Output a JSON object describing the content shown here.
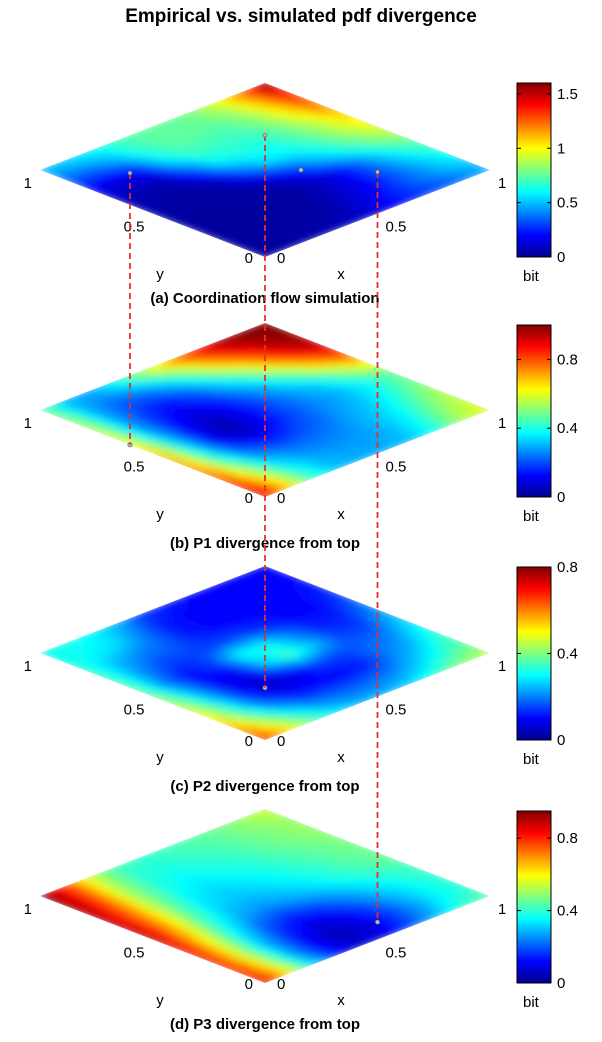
{
  "figure": {
    "title": "Empirical vs. simulated pdf divergence"
  },
  "colors": {
    "jet": [
      "#00008f",
      "#0000ff",
      "#0080ff",
      "#00ffff",
      "#80ff80",
      "#ffff00",
      "#ff8000",
      "#ff0000",
      "#800000"
    ],
    "connector": "#e8302a",
    "background": "#ffffff"
  },
  "chart_data": [
    {
      "type": "heatmap",
      "caption": "(a) Coordination flow simulation",
      "xlabel": "x",
      "ylabel": "y",
      "colorbar_label": "bit",
      "x_ticks": [
        "0",
        "0.5",
        "1"
      ],
      "y_ticks": [
        "0",
        "0.5",
        "1"
      ],
      "colorbar": {
        "min": 0,
        "max": 1.6,
        "ticks": [
          0,
          0.5,
          1,
          1.5
        ],
        "tick_labels": [
          "0",
          "0.5",
          "1",
          "1.5"
        ]
      },
      "marker": {
        "x": 0.58,
        "y": 0.42,
        "value": 0.0
      },
      "field": [
        [
          0.05,
          0.05,
          0.06,
          0.08,
          0.12,
          0.18,
          0.25,
          0.3,
          0.35,
          0.45
        ],
        [
          0.05,
          0.05,
          0.06,
          0.06,
          0.08,
          0.15,
          0.25,
          0.35,
          0.45,
          0.55
        ],
        [
          0.05,
          0.05,
          0.05,
          0.05,
          0.06,
          0.12,
          0.2,
          0.35,
          0.5,
          0.65
        ],
        [
          0.05,
          0.05,
          0.05,
          0.05,
          0.05,
          0.1,
          0.2,
          0.4,
          0.6,
          0.75
        ],
        [
          0.06,
          0.05,
          0.05,
          0.05,
          0.1,
          0.25,
          0.45,
          0.6,
          0.75,
          0.9
        ],
        [
          0.08,
          0.06,
          0.05,
          0.1,
          0.35,
          0.55,
          0.6,
          0.7,
          0.85,
          1.0
        ],
        [
          0.1,
          0.08,
          0.08,
          0.3,
          0.6,
          0.65,
          0.65,
          0.75,
          0.9,
          1.1
        ],
        [
          0.2,
          0.15,
          0.2,
          0.55,
          0.7,
          0.7,
          0.7,
          0.8,
          1.0,
          1.25
        ],
        [
          0.35,
          0.35,
          0.45,
          0.65,
          0.75,
          0.75,
          0.75,
          0.85,
          1.1,
          1.4
        ],
        [
          0.5,
          0.55,
          0.6,
          0.7,
          0.75,
          0.75,
          0.8,
          0.95,
          1.2,
          1.6
        ]
      ]
    },
    {
      "type": "heatmap",
      "caption": "(b) P1 divergence from top",
      "xlabel": "x",
      "ylabel": "y",
      "colorbar_label": "bit",
      "x_ticks": [
        "0",
        "0.5",
        "1"
      ],
      "y_ticks": [
        "0",
        "0.5",
        "1"
      ],
      "colorbar": {
        "min": 0,
        "max": 1.0,
        "ticks": [
          0,
          0.4,
          0.8
        ],
        "tick_labels": [
          "0",
          "0.4",
          "0.8"
        ]
      },
      "marker": {
        "x": 0.0,
        "y": 0.6,
        "value": 0.05
      },
      "field": [
        [
          0.95,
          0.7,
          0.45,
          0.32,
          0.3,
          0.3,
          0.32,
          0.4,
          0.55,
          0.6
        ],
        [
          0.9,
          0.65,
          0.4,
          0.3,
          0.28,
          0.28,
          0.3,
          0.38,
          0.5,
          0.58
        ],
        [
          0.85,
          0.55,
          0.32,
          0.25,
          0.24,
          0.26,
          0.3,
          0.35,
          0.45,
          0.55
        ],
        [
          0.8,
          0.45,
          0.22,
          0.14,
          0.18,
          0.22,
          0.28,
          0.32,
          0.4,
          0.5
        ],
        [
          0.75,
          0.4,
          0.12,
          0.05,
          0.12,
          0.2,
          0.26,
          0.3,
          0.38,
          0.48
        ],
        [
          0.7,
          0.35,
          0.12,
          0.05,
          0.12,
          0.2,
          0.28,
          0.35,
          0.5,
          0.65
        ],
        [
          0.65,
          0.3,
          0.15,
          0.1,
          0.15,
          0.25,
          0.35,
          0.5,
          0.7,
          0.85
        ],
        [
          0.6,
          0.3,
          0.18,
          0.15,
          0.22,
          0.35,
          0.5,
          0.7,
          0.88,
          0.95
        ],
        [
          0.55,
          0.3,
          0.22,
          0.25,
          0.35,
          0.5,
          0.7,
          0.85,
          0.95,
          1.0
        ],
        [
          0.5,
          0.3,
          0.3,
          0.4,
          0.55,
          0.7,
          0.85,
          0.95,
          1.0,
          1.0
        ]
      ]
    },
    {
      "type": "heatmap",
      "caption": "(c) P2 divergence from top",
      "xlabel": "x",
      "ylabel": "y",
      "colorbar_label": "bit",
      "x_ticks": [
        "0",
        "0.5",
        "1"
      ],
      "y_ticks": [
        "0",
        "0.5",
        "1"
      ],
      "colorbar": {
        "min": 0,
        "max": 0.8,
        "ticks": [
          0,
          0.4,
          0.8
        ],
        "tick_labels": [
          "0",
          "0.4",
          "0.8"
        ]
      },
      "marker": {
        "x": 0.3,
        "y": 0.3,
        "value": 0.05
      },
      "field": [
        [
          0.7,
          0.55,
          0.4,
          0.3,
          0.25,
          0.25,
          0.28,
          0.35,
          0.42,
          0.45
        ],
        [
          0.62,
          0.45,
          0.3,
          0.2,
          0.18,
          0.18,
          0.2,
          0.25,
          0.32,
          0.38
        ],
        [
          0.55,
          0.35,
          0.18,
          0.1,
          0.1,
          0.1,
          0.12,
          0.2,
          0.25,
          0.35
        ],
        [
          0.5,
          0.3,
          0.12,
          0.05,
          0.08,
          0.15,
          0.15,
          0.18,
          0.2,
          0.3
        ],
        [
          0.45,
          0.25,
          0.1,
          0.08,
          0.25,
          0.35,
          0.25,
          0.15,
          0.15,
          0.25
        ],
        [
          0.4,
          0.2,
          0.1,
          0.15,
          0.3,
          0.3,
          0.2,
          0.12,
          0.12,
          0.2
        ],
        [
          0.38,
          0.22,
          0.15,
          0.15,
          0.15,
          0.15,
          0.12,
          0.1,
          0.1,
          0.15
        ],
        [
          0.35,
          0.25,
          0.2,
          0.18,
          0.12,
          0.1,
          0.1,
          0.1,
          0.1,
          0.12
        ],
        [
          0.32,
          0.3,
          0.28,
          0.2,
          0.12,
          0.1,
          0.1,
          0.1,
          0.1,
          0.1
        ],
        [
          0.3,
          0.32,
          0.3,
          0.25,
          0.15,
          0.12,
          0.1,
          0.1,
          0.1,
          0.1
        ]
      ]
    },
    {
      "type": "heatmap",
      "caption": "(d) P3 divergence from top",
      "xlabel": "x",
      "ylabel": "y",
      "colorbar_label": "bit",
      "x_ticks": [
        "0",
        "0.5",
        "1"
      ],
      "y_ticks": [
        "0",
        "0.5",
        "1"
      ],
      "colorbar": {
        "min": 0,
        "max": 0.95,
        "ticks": [
          0,
          0.4,
          0.8
        ],
        "tick_labels": [
          "0",
          "0.4",
          "0.8"
        ]
      },
      "marker": {
        "x": 0.6,
        "y": 0.1,
        "value": 0.05
      },
      "field": [
        [
          0.9,
          0.65,
          0.35,
          0.15,
          0.08,
          0.1,
          0.2,
          0.3,
          0.4,
          0.45
        ],
        [
          0.85,
          0.6,
          0.3,
          0.12,
          0.05,
          0.08,
          0.15,
          0.25,
          0.35,
          0.4
        ],
        [
          0.85,
          0.58,
          0.3,
          0.15,
          0.08,
          0.1,
          0.18,
          0.28,
          0.35,
          0.4
        ],
        [
          0.88,
          0.6,
          0.35,
          0.2,
          0.15,
          0.18,
          0.25,
          0.32,
          0.38,
          0.42
        ],
        [
          0.9,
          0.65,
          0.4,
          0.28,
          0.25,
          0.28,
          0.32,
          0.38,
          0.42,
          0.45
        ],
        [
          0.92,
          0.7,
          0.45,
          0.32,
          0.3,
          0.32,
          0.36,
          0.4,
          0.44,
          0.46
        ],
        [
          0.92,
          0.72,
          0.48,
          0.35,
          0.32,
          0.35,
          0.38,
          0.42,
          0.45,
          0.48
        ],
        [
          0.93,
          0.75,
          0.5,
          0.38,
          0.35,
          0.38,
          0.4,
          0.44,
          0.47,
          0.5
        ],
        [
          0.94,
          0.78,
          0.52,
          0.4,
          0.38,
          0.4,
          0.42,
          0.45,
          0.48,
          0.5
        ],
        [
          0.95,
          0.8,
          0.55,
          0.42,
          0.4,
          0.42,
          0.44,
          0.46,
          0.5,
          0.55
        ]
      ]
    }
  ]
}
